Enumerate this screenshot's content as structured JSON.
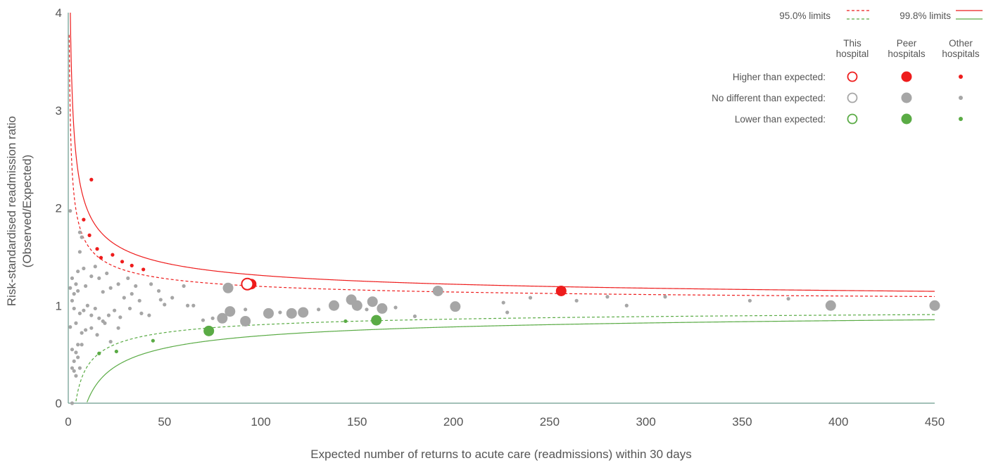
{
  "chart_data": {
    "type": "scatter",
    "xlabel": "Expected number of returns to acute care (readmissions) within 30 days",
    "ylabel": [
      "Risk-standardised readmission ratio",
      "(Observed/Expected)"
    ],
    "xlim": [
      0,
      450
    ],
    "ylim": [
      0,
      4
    ],
    "x_ticks": [
      "0",
      "50",
      "100",
      "150",
      "200",
      "250",
      "300",
      "350",
      "400",
      "450"
    ],
    "y_ticks": [
      "0",
      "1",
      "2",
      "3",
      "4"
    ],
    "grid": false,
    "legend_placement": "top-right",
    "colors": {
      "higher": "#ee1c1c",
      "no_different": "#a6a6a6",
      "lower": "#5aab45",
      "axis": "#6a9a8c",
      "text": "#555555"
    },
    "control_limits": {
      "label_95": "95.0% limits",
      "label_998": "99.8% limits",
      "z_95": 1.96,
      "z_998": 3.09
    },
    "legend": {
      "columns": [
        "This\nhospital",
        "Peer\nhospitals",
        "Other\nhospitals"
      ],
      "rows": [
        "Higher than expected:",
        "No different than expected:",
        "Lower than expected:"
      ]
    },
    "this_hospital": [
      {
        "x": 93,
        "y": 1.22,
        "category": "higher"
      }
    ],
    "peer_hospitals": [
      {
        "x": 95,
        "y": 1.22,
        "category": "higher"
      },
      {
        "x": 256,
        "y": 1.15,
        "category": "higher"
      },
      {
        "x": 73,
        "y": 0.74,
        "category": "lower"
      },
      {
        "x": 160,
        "y": 0.85,
        "category": "lower"
      },
      {
        "x": 83,
        "y": 1.18,
        "category": "no_different"
      },
      {
        "x": 80,
        "y": 0.87,
        "category": "no_different"
      },
      {
        "x": 84,
        "y": 0.94,
        "category": "no_different"
      },
      {
        "x": 92,
        "y": 0.84,
        "category": "no_different"
      },
      {
        "x": 104,
        "y": 0.92,
        "category": "no_different"
      },
      {
        "x": 116,
        "y": 0.92,
        "category": "no_different"
      },
      {
        "x": 122,
        "y": 0.93,
        "category": "no_different"
      },
      {
        "x": 138,
        "y": 1.0,
        "category": "no_different"
      },
      {
        "x": 147,
        "y": 1.06,
        "category": "no_different"
      },
      {
        "x": 150,
        "y": 1.0,
        "category": "no_different"
      },
      {
        "x": 158,
        "y": 1.04,
        "category": "no_different"
      },
      {
        "x": 163,
        "y": 0.97,
        "category": "no_different"
      },
      {
        "x": 192,
        "y": 1.15,
        "category": "no_different"
      },
      {
        "x": 201,
        "y": 0.99,
        "category": "no_different"
      },
      {
        "x": 396,
        "y": 1.0,
        "category": "no_different"
      },
      {
        "x": 450,
        "y": 1.0,
        "category": "no_different"
      }
    ],
    "other_hospitals": [
      {
        "x": 12,
        "y": 2.29,
        "category": "higher"
      },
      {
        "x": 8,
        "y": 1.88,
        "category": "higher"
      },
      {
        "x": 11,
        "y": 1.72,
        "category": "higher"
      },
      {
        "x": 15,
        "y": 1.58,
        "category": "higher"
      },
      {
        "x": 17,
        "y": 1.49,
        "category": "higher"
      },
      {
        "x": 23,
        "y": 1.52,
        "category": "higher"
      },
      {
        "x": 28,
        "y": 1.45,
        "category": "higher"
      },
      {
        "x": 33,
        "y": 1.41,
        "category": "higher"
      },
      {
        "x": 39,
        "y": 1.37,
        "category": "higher"
      },
      {
        "x": 16,
        "y": 0.51,
        "category": "lower"
      },
      {
        "x": 25,
        "y": 0.53,
        "category": "lower"
      },
      {
        "x": 44,
        "y": 0.64,
        "category": "lower"
      },
      {
        "x": 144,
        "y": 0.84,
        "category": "lower"
      },
      {
        "x": 1,
        "y": 1.97,
        "category": "no_different"
      },
      {
        "x": 6,
        "y": 1.75,
        "category": "no_different"
      },
      {
        "x": 7,
        "y": 1.7,
        "category": "no_different"
      },
      {
        "x": 6,
        "y": 1.55,
        "category": "no_different"
      },
      {
        "x": 5,
        "y": 1.35,
        "category": "no_different"
      },
      {
        "x": 8,
        "y": 1.38,
        "category": "no_different"
      },
      {
        "x": 2,
        "y": 1.28,
        "category": "no_different"
      },
      {
        "x": 4,
        "y": 1.22,
        "category": "no_different"
      },
      {
        "x": 1,
        "y": 1.18,
        "category": "no_different"
      },
      {
        "x": 3,
        "y": 1.12,
        "category": "no_different"
      },
      {
        "x": 2,
        "y": 1.05,
        "category": "no_different"
      },
      {
        "x": 5,
        "y": 1.15,
        "category": "no_different"
      },
      {
        "x": 9,
        "y": 1.2,
        "category": "no_different"
      },
      {
        "x": 12,
        "y": 1.3,
        "category": "no_different"
      },
      {
        "x": 14,
        "y": 1.4,
        "category": "no_different"
      },
      {
        "x": 16,
        "y": 1.28,
        "category": "no_different"
      },
      {
        "x": 18,
        "y": 1.14,
        "category": "no_different"
      },
      {
        "x": 20,
        "y": 1.33,
        "category": "no_different"
      },
      {
        "x": 22,
        "y": 1.18,
        "category": "no_different"
      },
      {
        "x": 26,
        "y": 1.22,
        "category": "no_different"
      },
      {
        "x": 29,
        "y": 1.08,
        "category": "no_different"
      },
      {
        "x": 31,
        "y": 1.28,
        "category": "no_different"
      },
      {
        "x": 33,
        "y": 1.12,
        "category": "no_different"
      },
      {
        "x": 35,
        "y": 1.2,
        "category": "no_different"
      },
      {
        "x": 37,
        "y": 1.05,
        "category": "no_different"
      },
      {
        "x": 43,
        "y": 1.22,
        "category": "no_different"
      },
      {
        "x": 47,
        "y": 1.15,
        "category": "no_different"
      },
      {
        "x": 48,
        "y": 1.06,
        "category": "no_different"
      },
      {
        "x": 50,
        "y": 1.01,
        "category": "no_different"
      },
      {
        "x": 54,
        "y": 1.08,
        "category": "no_different"
      },
      {
        "x": 60,
        "y": 1.2,
        "category": "no_different"
      },
      {
        "x": 62,
        "y": 1.0,
        "category": "no_different"
      },
      {
        "x": 65,
        "y": 1.0,
        "category": "no_different"
      },
      {
        "x": 3,
        "y": 0.97,
        "category": "no_different"
      },
      {
        "x": 6,
        "y": 0.92,
        "category": "no_different"
      },
      {
        "x": 8,
        "y": 0.95,
        "category": "no_different"
      },
      {
        "x": 10,
        "y": 1.0,
        "category": "no_different"
      },
      {
        "x": 12,
        "y": 0.9,
        "category": "no_different"
      },
      {
        "x": 14,
        "y": 0.97,
        "category": "no_different"
      },
      {
        "x": 16,
        "y": 0.87,
        "category": "no_different"
      },
      {
        "x": 18,
        "y": 0.84,
        "category": "no_different"
      },
      {
        "x": 21,
        "y": 0.9,
        "category": "no_different"
      },
      {
        "x": 24,
        "y": 0.95,
        "category": "no_different"
      },
      {
        "x": 27,
        "y": 0.88,
        "category": "no_different"
      },
      {
        "x": 32,
        "y": 0.97,
        "category": "no_different"
      },
      {
        "x": 38,
        "y": 0.92,
        "category": "no_different"
      },
      {
        "x": 42,
        "y": 0.9,
        "category": "no_different"
      },
      {
        "x": 1,
        "y": 0.78,
        "category": "no_different"
      },
      {
        "x": 4,
        "y": 0.82,
        "category": "no_different"
      },
      {
        "x": 7,
        "y": 0.72,
        "category": "no_different"
      },
      {
        "x": 9,
        "y": 0.75,
        "category": "no_different"
      },
      {
        "x": 12,
        "y": 0.77,
        "category": "no_different"
      },
      {
        "x": 15,
        "y": 0.7,
        "category": "no_different"
      },
      {
        "x": 19,
        "y": 0.82,
        "category": "no_different"
      },
      {
        "x": 22,
        "y": 0.63,
        "category": "no_different"
      },
      {
        "x": 26,
        "y": 0.77,
        "category": "no_different"
      },
      {
        "x": 2,
        "y": 0.55,
        "category": "no_different"
      },
      {
        "x": 4,
        "y": 0.52,
        "category": "no_different"
      },
      {
        "x": 5,
        "y": 0.6,
        "category": "no_different"
      },
      {
        "x": 7,
        "y": 0.6,
        "category": "no_different"
      },
      {
        "x": 3,
        "y": 0.43,
        "category": "no_different"
      },
      {
        "x": 5,
        "y": 0.47,
        "category": "no_different"
      },
      {
        "x": 2,
        "y": 0.36,
        "category": "no_different"
      },
      {
        "x": 3,
        "y": 0.33,
        "category": "no_different"
      },
      {
        "x": 6,
        "y": 0.36,
        "category": "no_different"
      },
      {
        "x": 4,
        "y": 0.28,
        "category": "no_different"
      },
      {
        "x": 2,
        "y": 0.0,
        "category": "no_different"
      },
      {
        "x": 70,
        "y": 0.85,
        "category": "no_different"
      },
      {
        "x": 75,
        "y": 0.87,
        "category": "no_different"
      },
      {
        "x": 92,
        "y": 0.96,
        "category": "no_different"
      },
      {
        "x": 110,
        "y": 0.93,
        "category": "no_different"
      },
      {
        "x": 130,
        "y": 0.96,
        "category": "no_different"
      },
      {
        "x": 155,
        "y": 0.96,
        "category": "no_different"
      },
      {
        "x": 170,
        "y": 0.98,
        "category": "no_different"
      },
      {
        "x": 180,
        "y": 0.89,
        "category": "no_different"
      },
      {
        "x": 226,
        "y": 1.03,
        "category": "no_different"
      },
      {
        "x": 228,
        "y": 0.93,
        "category": "no_different"
      },
      {
        "x": 240,
        "y": 1.08,
        "category": "no_different"
      },
      {
        "x": 264,
        "y": 1.05,
        "category": "no_different"
      },
      {
        "x": 280,
        "y": 1.09,
        "category": "no_different"
      },
      {
        "x": 290,
        "y": 1.0,
        "category": "no_different"
      },
      {
        "x": 310,
        "y": 1.09,
        "category": "no_different"
      },
      {
        "x": 354,
        "y": 1.05,
        "category": "no_different"
      },
      {
        "x": 374,
        "y": 1.07,
        "category": "no_different"
      }
    ]
  }
}
